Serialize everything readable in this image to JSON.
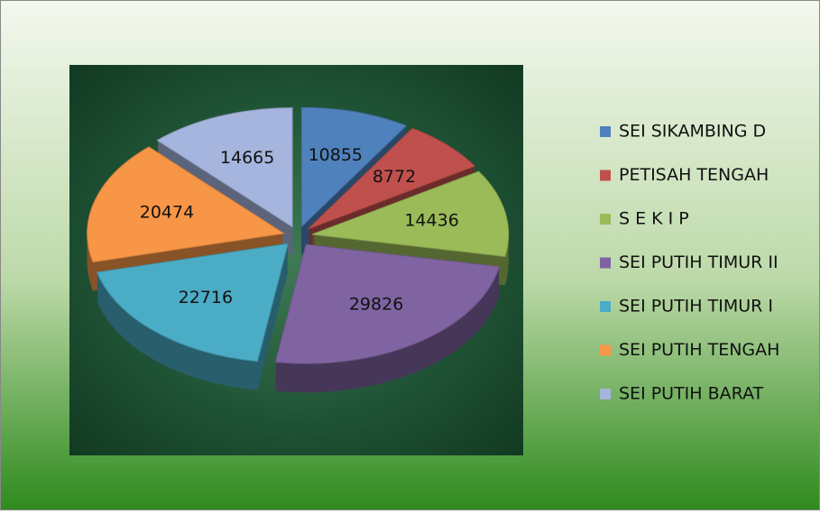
{
  "chart_data": {
    "type": "pie",
    "categories": [
      "SEI SIKAMBING D",
      "PETISAH TENGAH",
      "S E K I P",
      "SEI PUTIH TIMUR II",
      "SEI PUTIH TIMUR I",
      "SEI PUTIH TENGAH",
      "SEI PUTIH BARAT"
    ],
    "values": [
      10855,
      8772,
      14436,
      29826,
      22716,
      20474,
      14665
    ],
    "colors": [
      "#4f81bd",
      "#c0504d",
      "#9bbb59",
      "#8064a2",
      "#4bacc6",
      "#f79646",
      "#a5b5dd"
    ],
    "legend": "right"
  }
}
